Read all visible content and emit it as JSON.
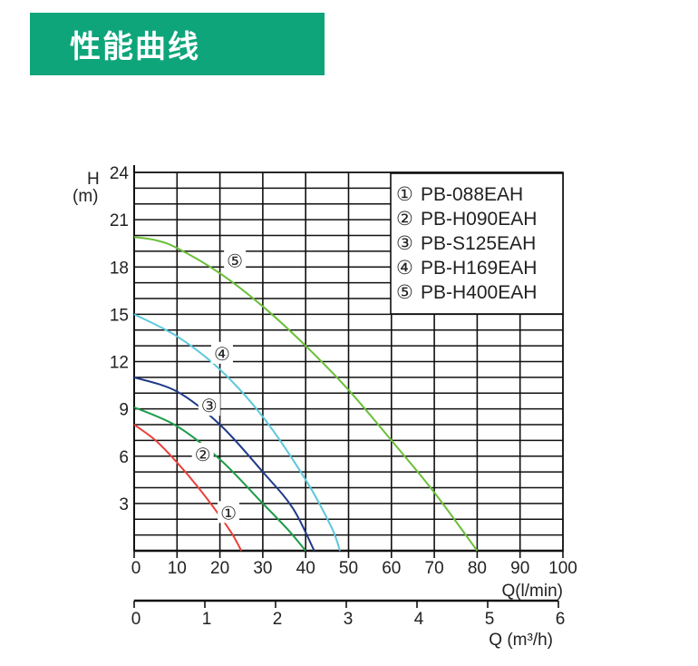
{
  "header": {
    "title": "性能曲线"
  },
  "colors": {
    "banner": "#0ea57a"
  },
  "chart_data": {
    "type": "line",
    "ylabel_top": "H",
    "ylabel_unit": "(m)",
    "xlabel": "Q(l/min)",
    "xlabel2": "Q (m³/h)",
    "ylim": [
      0,
      24
    ],
    "xlim": [
      0,
      100
    ],
    "x2lim": [
      0,
      6
    ],
    "yticks": [
      3,
      6,
      9,
      12,
      15,
      18,
      21,
      24
    ],
    "xticks": [
      0,
      10,
      20,
      30,
      40,
      50,
      60,
      70,
      80,
      90,
      100
    ],
    "x2ticks": [
      0,
      1,
      2,
      3,
      4,
      5,
      6
    ],
    "grid": true,
    "legend_position": "top-right",
    "series": [
      {
        "name": "PB-088EAH",
        "marker": "①",
        "color": "#e8413a",
        "x": [
          0,
          5,
          10,
          15,
          20,
          23,
          25
        ],
        "y": [
          8.0,
          7.0,
          5.6,
          4.0,
          2.2,
          1.0,
          0
        ]
      },
      {
        "name": "PB-H090EAH",
        "marker": "②",
        "color": "#1e9c4a",
        "x": [
          0,
          10,
          20,
          30,
          36,
          40
        ],
        "y": [
          9.1,
          7.9,
          5.8,
          3.0,
          1.3,
          0
        ]
      },
      {
        "name": "PB-S125EAH",
        "marker": "③",
        "color": "#1f3a8a",
        "x": [
          0,
          10,
          20,
          30,
          37,
          42
        ],
        "y": [
          11.0,
          10.1,
          8.0,
          5.0,
          2.7,
          0
        ]
      },
      {
        "name": "PB-H169EAH",
        "marker": "④",
        "color": "#5cc8dc",
        "x": [
          0,
          10,
          20,
          30,
          40,
          46,
          48
        ],
        "y": [
          15.0,
          13.6,
          11.5,
          8.5,
          4.5,
          1.5,
          0
        ]
      },
      {
        "name": "PB-H400EAH",
        "marker": "⑤",
        "color": "#6bbf3a",
        "x": [
          0,
          5,
          10,
          20,
          30,
          40,
          50,
          60,
          70,
          80
        ],
        "y": [
          19.9,
          19.7,
          19.2,
          17.6,
          15.5,
          13.0,
          10.2,
          7.0,
          3.7,
          0
        ]
      }
    ],
    "curve_labels": [
      {
        "marker": "①",
        "x": 22,
        "y": 2.4
      },
      {
        "marker": "②",
        "x": 16,
        "y": 6.1
      },
      {
        "marker": "③",
        "x": 17.5,
        "y": 9.2
      },
      {
        "marker": "④",
        "x": 20.5,
        "y": 12.5
      },
      {
        "marker": "⑤",
        "x": 23.5,
        "y": 18.4
      }
    ]
  }
}
